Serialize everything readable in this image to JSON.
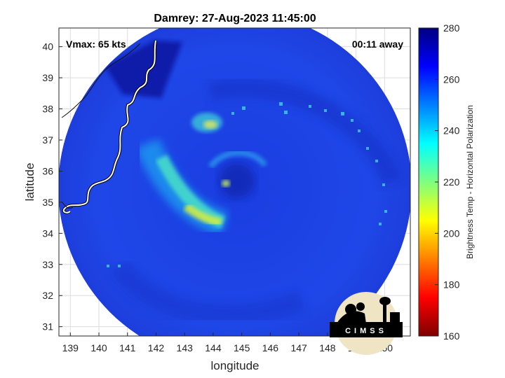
{
  "title": "Damrey: 27-Aug-2023 11:45:00",
  "vmax_label": "Vmax: 65 kts",
  "time_label": "00:11 away",
  "xlabel": "longitude",
  "ylabel": "latitude",
  "colorbar_label": "Brightness Temp - Horizontal Polarization",
  "logo_text": "CIMSS",
  "chart_data": {
    "type": "heatmap",
    "title": "Damrey: 27-Aug-2023 11:45:00",
    "xlabel": "longitude",
    "ylabel": "latitude",
    "xlim": [
      138.6,
      150.9
    ],
    "ylim": [
      30.7,
      40.6
    ],
    "xticks": [
      139,
      140,
      141,
      142,
      143,
      144,
      145,
      146,
      147,
      148,
      149,
      150
    ],
    "yticks": [
      31,
      32,
      33,
      34,
      35,
      36,
      37,
      38,
      39,
      40
    ],
    "grid": true,
    "storm_center": {
      "lon": 144.5,
      "lat": 35.6
    },
    "vmax_kts": 65,
    "colorbar": {
      "label": "Brightness Temp - Horizontal Polarization",
      "range": [
        160,
        280
      ],
      "ticks": [
        160,
        180,
        200,
        220,
        240,
        260,
        280
      ],
      "colormap": "jet"
    }
  }
}
